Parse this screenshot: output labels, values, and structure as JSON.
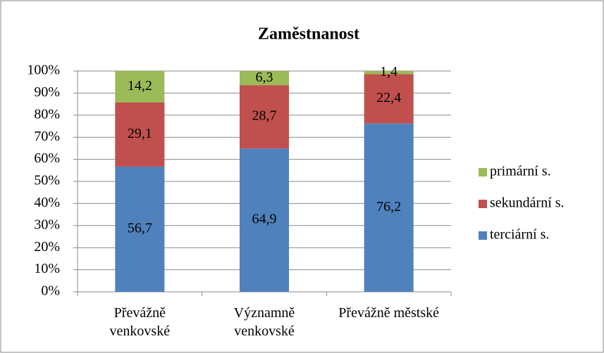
{
  "chart_data": {
    "type": "stacked_bar",
    "title": "Zaměstnanost",
    "categories": [
      "Převážně venkovské",
      "Významně venkovské",
      "Převážně městské"
    ],
    "series": [
      {
        "name": "terciární s.",
        "color": "#4f81bd",
        "values": [
          56.7,
          64.9,
          76.2
        ],
        "value_labels": [
          "56,7",
          "64,9",
          "76,2"
        ]
      },
      {
        "name": "sekundární s.",
        "color": "#c0504d",
        "values": [
          29.1,
          28.7,
          22.4
        ],
        "value_labels": [
          "29,1",
          "28,7",
          "22,4"
        ]
      },
      {
        "name": "primární s.",
        "color": "#9bbb59",
        "values": [
          14.2,
          6.3,
          1.4
        ],
        "value_labels": [
          "14,2",
          "6,3",
          "1,4"
        ]
      }
    ],
    "ylim": [
      0,
      100
    ],
    "yticks": [
      {
        "value": 0,
        "label": "0%"
      },
      {
        "value": 10,
        "label": "10%"
      },
      {
        "value": 20,
        "label": "20%"
      },
      {
        "value": 30,
        "label": "30%"
      },
      {
        "value": 40,
        "label": "40%"
      },
      {
        "value": 50,
        "label": "50%"
      },
      {
        "value": 60,
        "label": "60%"
      },
      {
        "value": 70,
        "label": "70%"
      },
      {
        "value": 80,
        "label": "80%"
      },
      {
        "value": 90,
        "label": "90%"
      },
      {
        "value": 100,
        "label": "100%"
      }
    ],
    "grid": true,
    "legend": "right"
  }
}
